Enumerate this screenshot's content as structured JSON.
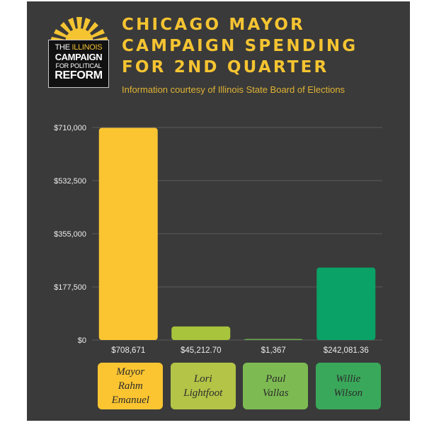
{
  "logo": {
    "line1_a": "THE ",
    "line1_b": "ILLINOIS",
    "line2": "CAMPAIGN",
    "line3": "FOR POLITICAL",
    "line4": "REFORM"
  },
  "header": {
    "title_lines": [
      "CHICAGO MAYOR",
      "CAMPAIGN SPENDING",
      "FOR  2ND QUARTER"
    ],
    "subtitle": "Information courtesy of Illinois State Board of Elections"
  },
  "chart_data": {
    "type": "bar",
    "title": "CHICAGO MAYOR CAMPAIGN SPENDING FOR  2ND QUARTER",
    "subtitle": "Information courtesy of Illinois State Board of Elections",
    "categories": [
      "Mayor Rahm Emanuel",
      "Lori Lightfoot",
      "Paul Vallas",
      "Willie Wilson"
    ],
    "values": [
      708671,
      45212.7,
      1367,
      242081.36
    ],
    "value_labels": [
      "$708,671",
      "$45,212.70",
      "$1,367",
      "$242,081.36"
    ],
    "ylim": [
      0,
      710000
    ],
    "yticks": [
      0,
      177500,
      355000,
      532500,
      710000
    ],
    "ytick_labels": [
      "$0",
      "$177,500",
      "$355,000",
      "$532,500",
      "$710,000"
    ],
    "grid": true,
    "colors": [
      "#fbc531",
      "#a8c43c",
      "#6aac4c",
      "#0aa266"
    ]
  },
  "candidates": [
    {
      "label": "Mayor\nRahm\nEmanuel",
      "color": "#fbc531"
    },
    {
      "label": "Lori\nLightfoot",
      "color": "#b3c447"
    },
    {
      "label": "Paul\nVallas",
      "color": "#7dbb52"
    },
    {
      "label": "Willie\nWilson",
      "color": "#3aa85a"
    }
  ]
}
